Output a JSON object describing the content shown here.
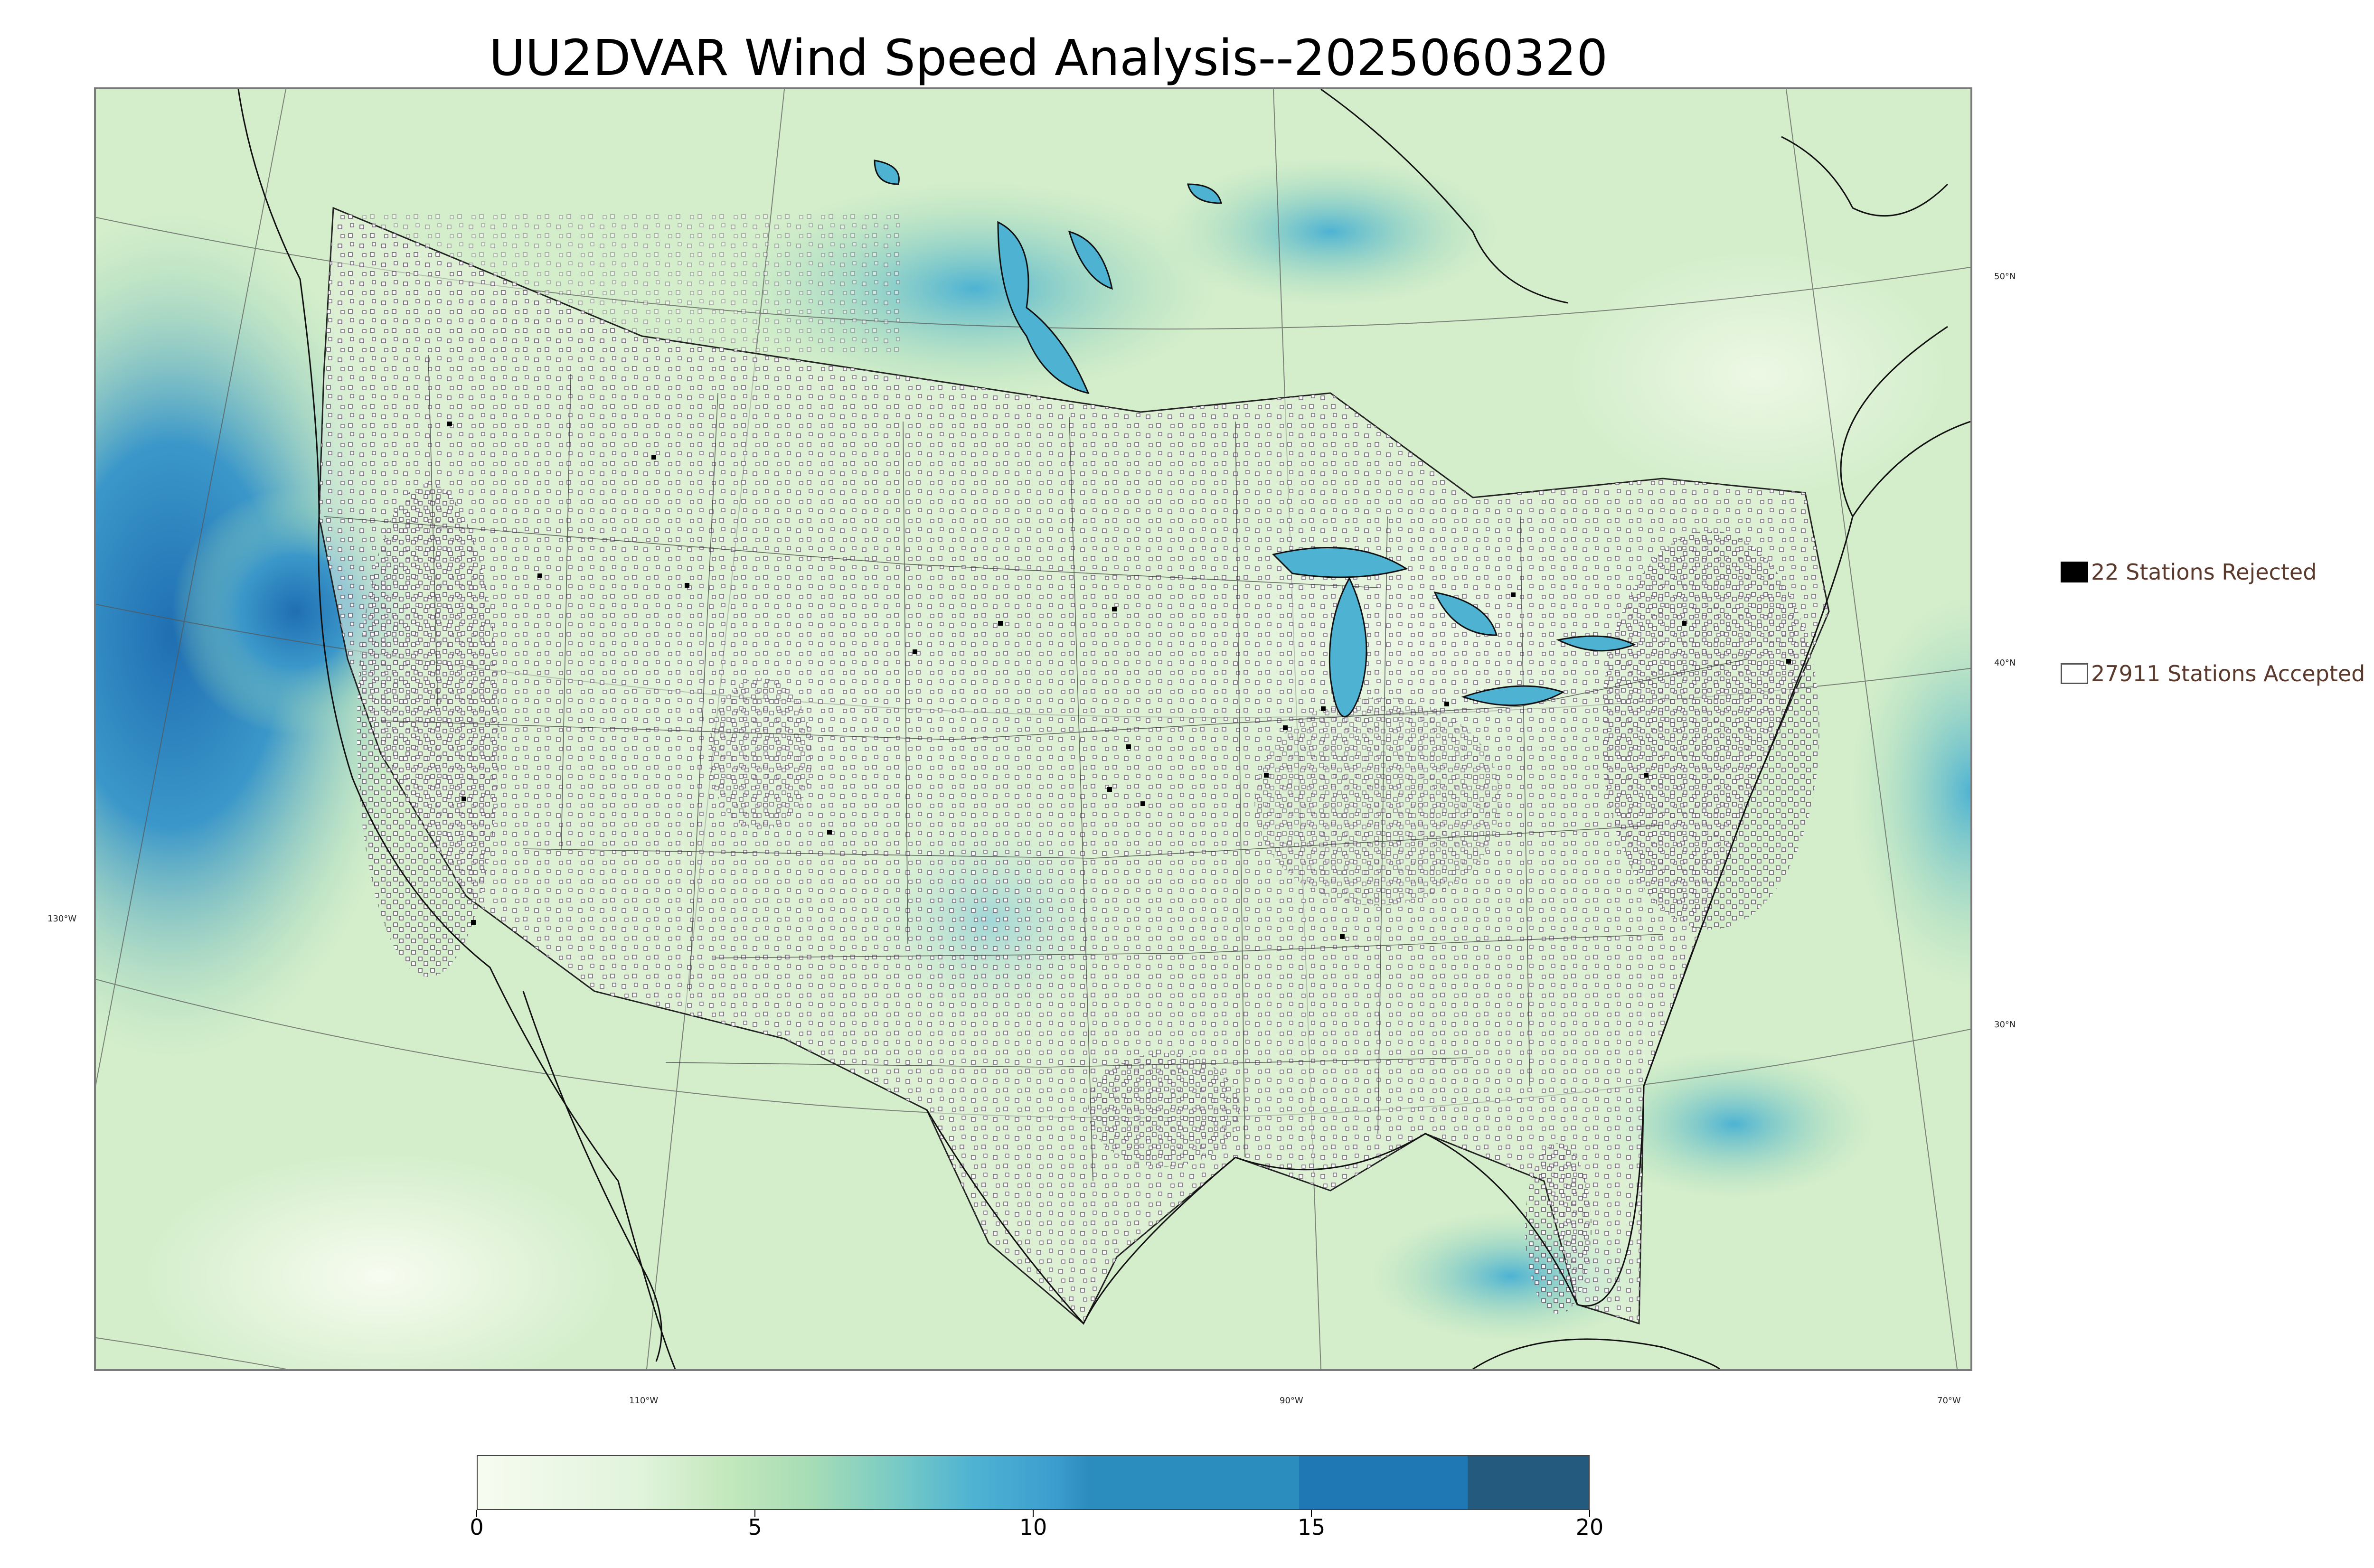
{
  "title": "UU2DVAR Wind Speed Analysis--2025060320",
  "map": {
    "lat_labels": [
      "50°N",
      "40°N",
      "30°N"
    ],
    "lon_labels": [
      "130°W",
      "110°W",
      "90°W",
      "70°W"
    ],
    "colors": {
      "water_fast": "#2b7bb9",
      "land_base": "#d9f0d3",
      "station_accepted": "#ffffff",
      "station_rejected": "#000000",
      "border_lines": "#333333"
    }
  },
  "legend": {
    "rejected_label": "22 Stations Rejected",
    "accepted_label": "27911 Stations Accepted"
  },
  "colorbar": {
    "min": 0,
    "max": 20,
    "tick_labels": [
      "0",
      "5",
      "10",
      "15",
      "20"
    ],
    "tick_values": [
      0,
      5,
      10,
      15,
      20
    ],
    "colors": [
      "#f7fcf0",
      "#e0f3db",
      "#ccebc5",
      "#a8ddb5",
      "#7bccc4",
      "#4eb3d3",
      "#2b8cbe",
      "#1f78b4",
      "#245a7e"
    ]
  }
}
